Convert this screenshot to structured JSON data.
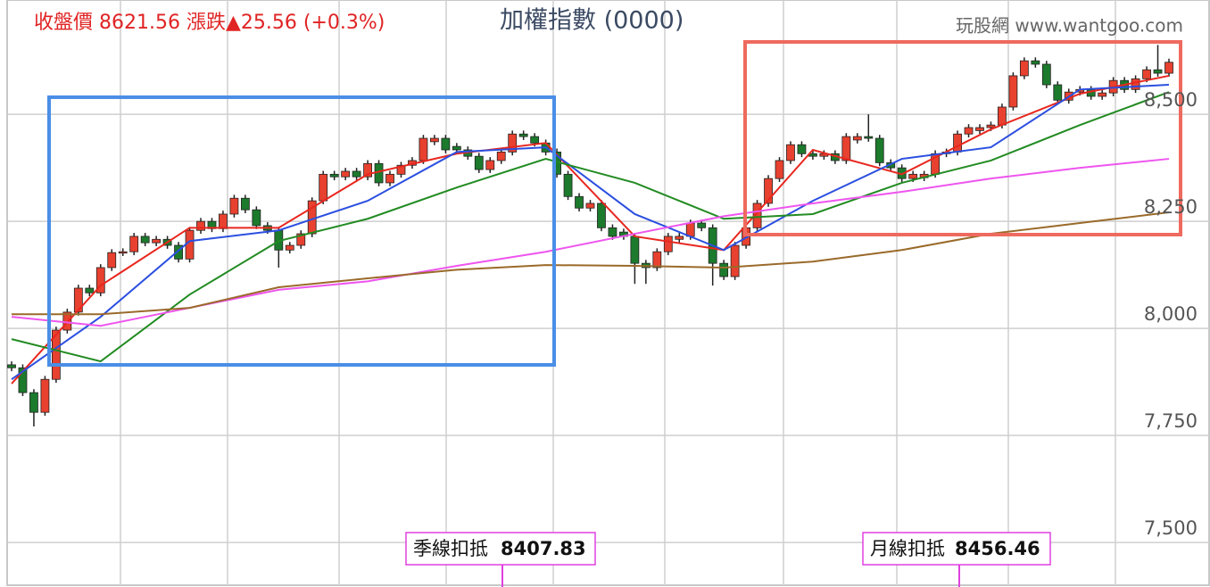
{
  "chart_data": {
    "type": "candlestick",
    "quote": "收盤價 8621.56 漲跌▲25.56 (+0.3%)",
    "title": "加權指數 (0000)",
    "source": "玩股網 www.wantgoo.com",
    "open": [
      7915,
      7908,
      7850,
      7804,
      7881,
      7996,
      8038,
      8094,
      8083,
      8142,
      8177,
      8179,
      8215,
      8200,
      8208,
      8194,
      8162,
      8229,
      8250,
      8233,
      8267,
      8304,
      8277,
      8240,
      8229,
      8183,
      8194,
      8221,
      8298,
      8360,
      8354,
      8367,
      8354,
      8385,
      8340,
      8360,
      8381,
      8392,
      8436,
      8444,
      8425,
      8417,
      8402,
      8371,
      8392,
      8412,
      8454,
      8448,
      8433,
      8412,
      8360,
      8308,
      8281,
      8292,
      8235,
      8225,
      8215,
      8152,
      8142,
      8179,
      8208,
      8215,
      8246,
      8235,
      8152,
      8121,
      8194,
      8235,
      8292,
      8350,
      8392,
      8429,
      8408,
      8402,
      8408,
      8392,
      8440,
      8448,
      8444,
      8387,
      8375,
      8350,
      8352,
      8360,
      8408,
      8412,
      8454,
      8462,
      8469,
      8475,
      8517,
      8590,
      8625,
      8617,
      8569,
      8533,
      8552,
      8558,
      8542,
      8550,
      8579,
      8558,
      8583,
      8604,
      8596
    ],
    "high": [
      7923,
      7916,
      7858,
      7889,
      8004,
      8046,
      8102,
      8102,
      8150,
      8185,
      8187,
      8223,
      8223,
      8216,
      8216,
      8202,
      8237,
      8258,
      8258,
      8275,
      8312,
      8312,
      8285,
      8248,
      8237,
      8202,
      8229,
      8306,
      8368,
      8368,
      8375,
      8375,
      8393,
      8393,
      8368,
      8389,
      8400,
      8452,
      8452,
      8452,
      8433,
      8425,
      8410,
      8400,
      8420,
      8462,
      8462,
      8456,
      8441,
      8420,
      8368,
      8316,
      8300,
      8300,
      8243,
      8233,
      8223,
      8160,
      8187,
      8223,
      8223,
      8254,
      8254,
      8243,
      8160,
      8202,
      8243,
      8300,
      8358,
      8400,
      8437,
      8437,
      8416,
      8416,
      8416,
      8456,
      8456,
      8500,
      8452,
      8395,
      8383,
      8368,
      8368,
      8416,
      8420,
      8462,
      8477,
      8477,
      8483,
      8525,
      8598,
      8633,
      8633,
      8625,
      8577,
      8560,
      8566,
      8566,
      8558,
      8587,
      8587,
      8591,
      8612,
      8662,
      8630
    ],
    "low": [
      7900,
      7842,
      7771,
      7796,
      7873,
      7988,
      8030,
      8075,
      8075,
      8134,
      8169,
      8171,
      8192,
      8192,
      8186,
      8154,
      8154,
      8221,
      8225,
      8225,
      8259,
      8269,
      8232,
      8221,
      8142,
      8175,
      8186,
      8213,
      8290,
      8346,
      8346,
      8346,
      8346,
      8332,
      8332,
      8352,
      8373,
      8384,
      8428,
      8409,
      8409,
      8394,
      8363,
      8363,
      8384,
      8404,
      8440,
      8425,
      8404,
      8352,
      8300,
      8273,
      8273,
      8227,
      8207,
      8207,
      8104,
      8104,
      8134,
      8171,
      8200,
      8207,
      8227,
      8100,
      8113,
      8113,
      8186,
      8227,
      8284,
      8342,
      8384,
      8400,
      8394,
      8394,
      8384,
      8384,
      8432,
      8436,
      8379,
      8367,
      8342,
      8342,
      8344,
      8352,
      8400,
      8404,
      8446,
      8454,
      8461,
      8467,
      8509,
      8582,
      8609,
      8561,
      8525,
      8525,
      8544,
      8534,
      8534,
      8542,
      8550,
      8550,
      8575,
      8588,
      8588
    ],
    "close": [
      7908,
      7850,
      7804,
      7881,
      7996,
      8038,
      8094,
      8083,
      8142,
      8177,
      8179,
      8215,
      8200,
      8208,
      8194,
      8162,
      8229,
      8250,
      8233,
      8267,
      8304,
      8277,
      8240,
      8229,
      8183,
      8194,
      8221,
      8298,
      8360,
      8354,
      8367,
      8354,
      8385,
      8340,
      8360,
      8381,
      8392,
      8444,
      8444,
      8417,
      8417,
      8402,
      8371,
      8392,
      8412,
      8454,
      8448,
      8433,
      8412,
      8360,
      8308,
      8281,
      8292,
      8235,
      8215,
      8215,
      8152,
      8142,
      8179,
      8215,
      8215,
      8246,
      8235,
      8152,
      8121,
      8194,
      8235,
      8292,
      8350,
      8392,
      8429,
      8408,
      8402,
      8408,
      8392,
      8448,
      8448,
      8444,
      8387,
      8375,
      8350,
      8360,
      8360,
      8408,
      8412,
      8454,
      8469,
      8469,
      8475,
      8517,
      8590,
      8625,
      8617,
      8569,
      8533,
      8552,
      8558,
      8542,
      8550,
      8579,
      8558,
      8583,
      8604,
      8596,
      8621.56
    ],
    "up_color": "#e8412f",
    "down_color": "#1c7a2c",
    "series": [
      {
        "color": "#e8271f",
        "x": [
          0,
          8,
          16,
          24,
          32,
          40,
          48,
          56,
          64,
          72,
          80,
          88,
          96,
          104
        ],
        "values": [
          7871,
          8100,
          8235,
          8235,
          8360,
          8408,
          8433,
          8215,
          8183,
          8417,
          8360,
          8465,
          8548,
          8590
        ]
      },
      {
        "color": "#2b4fe0",
        "x": [
          0,
          8,
          16,
          24,
          32,
          40,
          48,
          56,
          64,
          72,
          80,
          88,
          96,
          104
        ],
        "values": [
          7881,
          8027,
          8204,
          8229,
          8298,
          8412,
          8423,
          8267,
          8183,
          8298,
          8396,
          8423,
          8558,
          8569
        ]
      },
      {
        "color": "#228b22",
        "x": [
          0,
          8,
          16,
          24,
          32,
          40,
          48,
          56,
          64,
          72,
          80,
          88,
          96,
          104
        ],
        "values": [
          7975,
          7923,
          8079,
          8204,
          8256,
          8329,
          8396,
          8340,
          8256,
          8267,
          8340,
          8392,
          8475,
          8552
        ]
      },
      {
        "color": "#ee55ee",
        "x": [
          0,
          8,
          16,
          24,
          32,
          40,
          48,
          56,
          64,
          72,
          80,
          88,
          96,
          104
        ],
        "values": [
          8027,
          8006,
          8048,
          8090,
          8110,
          8146,
          8179,
          8221,
          8262,
          8292,
          8319,
          8350,
          8375,
          8396
        ]
      },
      {
        "color": "#9a6a2a",
        "x": [
          0,
          8,
          16,
          24,
          32,
          40,
          48,
          56,
          64,
          72,
          80,
          88,
          96,
          104
        ],
        "values": [
          8033,
          8033,
          8048,
          8096,
          8117,
          8137,
          8148,
          8146,
          8142,
          8156,
          8183,
          8221,
          8246,
          8271
        ]
      }
    ],
    "ylim": [
      7396,
      8767
    ],
    "yticks": [
      {
        "value": 7500,
        "label": "7,500"
      },
      {
        "value": 7750,
        "label": "7,750"
      },
      {
        "value": 8000,
        "label": "8,000"
      },
      {
        "value": 8250,
        "label": "8,250"
      },
      {
        "value": 8500,
        "label": "8,500"
      }
    ],
    "grid": true,
    "annotations": [
      {
        "label": "季線扣抵",
        "value": 8407.83
      },
      {
        "label": "月線扣抵",
        "value": 8456.46
      }
    ]
  }
}
